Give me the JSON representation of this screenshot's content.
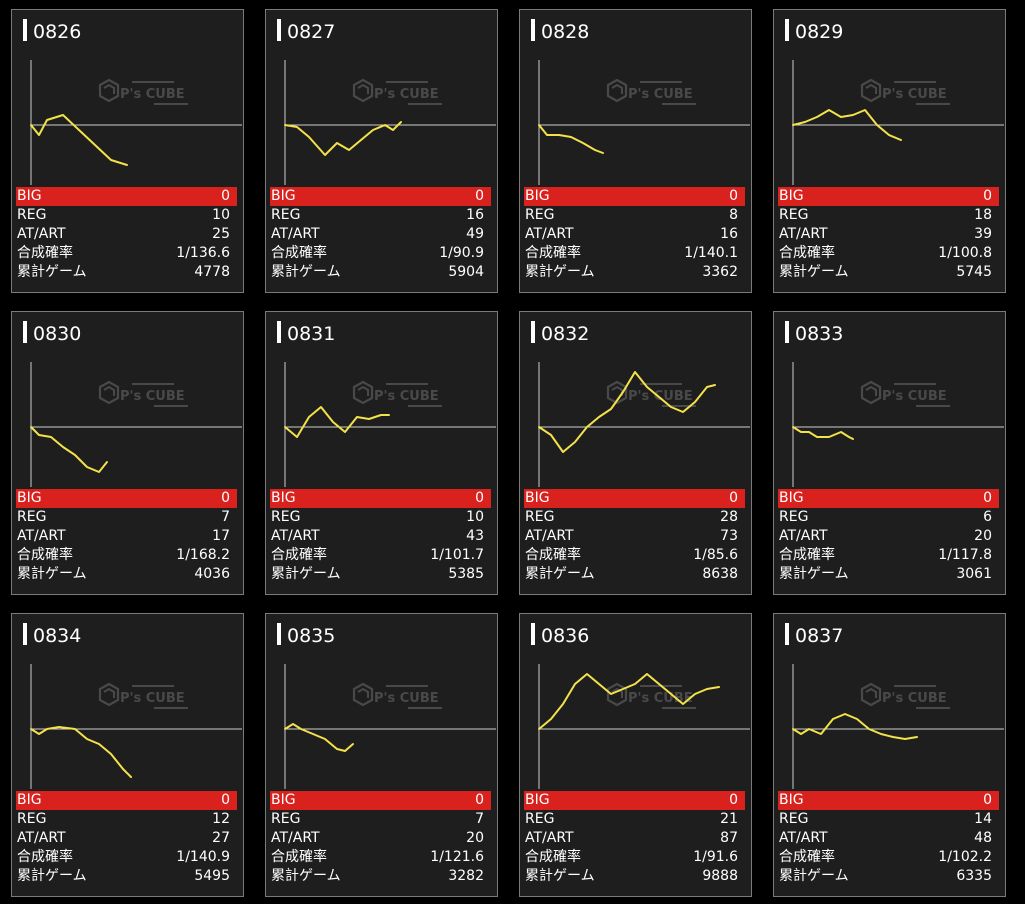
{
  "row_labels": {
    "big": "BIG",
    "reg": "REG",
    "at": "AT/ART",
    "prob": "合成確率",
    "games": "累計ゲーム"
  },
  "watermark": {
    "brand": "P's CUBE"
  },
  "colors": {
    "line": "#f3e24a",
    "big_row": "#d9211e",
    "card_bg": "#1e1e1e",
    "card_border": "#7a7a7a",
    "axis": "#cfcfcf"
  },
  "machines": [
    {
      "id": "0826",
      "big": "0",
      "reg": "10",
      "at": "25",
      "prob": "1/136.6",
      "games": "4778",
      "line": [
        [
          0,
          0
        ],
        [
          8,
          -10
        ],
        [
          16,
          5
        ],
        [
          32,
          10
        ],
        [
          48,
          -5
        ],
        [
          64,
          -20
        ],
        [
          80,
          -35
        ],
        [
          96,
          -40
        ]
      ]
    },
    {
      "id": "0827",
      "big": "0",
      "reg": "16",
      "at": "49",
      "prob": "1/90.9",
      "games": "5904",
      "line": [
        [
          0,
          0
        ],
        [
          12,
          -2
        ],
        [
          24,
          -12
        ],
        [
          40,
          -30
        ],
        [
          52,
          -18
        ],
        [
          64,
          -25
        ],
        [
          76,
          -15
        ],
        [
          88,
          -5
        ],
        [
          100,
          0
        ],
        [
          108,
          -5
        ],
        [
          116,
          3
        ]
      ]
    },
    {
      "id": "0828",
      "big": "0",
      "reg": "8",
      "at": "16",
      "prob": "1/140.1",
      "games": "3362",
      "line": [
        [
          0,
          0
        ],
        [
          8,
          -10
        ],
        [
          20,
          -10
        ],
        [
          32,
          -12
        ],
        [
          44,
          -18
        ],
        [
          56,
          -25
        ],
        [
          64,
          -28
        ]
      ]
    },
    {
      "id": "0829",
      "big": "0",
      "reg": "18",
      "at": "39",
      "prob": "1/100.8",
      "games": "5745",
      "line": [
        [
          0,
          0
        ],
        [
          12,
          3
        ],
        [
          24,
          8
        ],
        [
          36,
          15
        ],
        [
          48,
          8
        ],
        [
          60,
          10
        ],
        [
          72,
          15
        ],
        [
          84,
          0
        ],
        [
          96,
          -10
        ],
        [
          108,
          -15
        ]
      ]
    },
    {
      "id": "0830",
      "big": "0",
      "reg": "7",
      "at": "17",
      "prob": "1/168.2",
      "games": "4036",
      "line": [
        [
          0,
          0
        ],
        [
          8,
          -8
        ],
        [
          20,
          -10
        ],
        [
          32,
          -20
        ],
        [
          44,
          -28
        ],
        [
          56,
          -40
        ],
        [
          68,
          -45
        ],
        [
          76,
          -35
        ]
      ]
    },
    {
      "id": "0831",
      "big": "0",
      "reg": "10",
      "at": "43",
      "prob": "1/101.7",
      "games": "5385",
      "line": [
        [
          0,
          0
        ],
        [
          12,
          -10
        ],
        [
          24,
          10
        ],
        [
          36,
          20
        ],
        [
          48,
          5
        ],
        [
          60,
          -5
        ],
        [
          72,
          10
        ],
        [
          84,
          8
        ],
        [
          96,
          12
        ],
        [
          104,
          12
        ]
      ]
    },
    {
      "id": "0832",
      "big": "0",
      "reg": "28",
      "at": "73",
      "prob": "1/85.6",
      "games": "8638",
      "line": [
        [
          0,
          0
        ],
        [
          12,
          -8
        ],
        [
          24,
          -25
        ],
        [
          36,
          -15
        ],
        [
          48,
          0
        ],
        [
          60,
          10
        ],
        [
          72,
          18
        ],
        [
          84,
          35
        ],
        [
          96,
          55
        ],
        [
          108,
          40
        ],
        [
          120,
          30
        ],
        [
          132,
          20
        ],
        [
          144,
          15
        ],
        [
          156,
          25
        ],
        [
          168,
          40
        ],
        [
          176,
          42
        ]
      ]
    },
    {
      "id": "0833",
      "big": "0",
      "reg": "6",
      "at": "20",
      "prob": "1/117.8",
      "games": "3061",
      "line": [
        [
          0,
          0
        ],
        [
          8,
          -5
        ],
        [
          16,
          -5
        ],
        [
          24,
          -10
        ],
        [
          36,
          -10
        ],
        [
          48,
          -5
        ],
        [
          56,
          -10
        ],
        [
          60,
          -12
        ]
      ]
    },
    {
      "id": "0834",
      "big": "0",
      "reg": "12",
      "at": "27",
      "prob": "1/140.9",
      "games": "5495",
      "line": [
        [
          0,
          0
        ],
        [
          8,
          -5
        ],
        [
          16,
          0
        ],
        [
          28,
          2
        ],
        [
          44,
          0
        ],
        [
          56,
          -10
        ],
        [
          68,
          -15
        ],
        [
          80,
          -25
        ],
        [
          92,
          -40
        ],
        [
          100,
          -48
        ]
      ]
    },
    {
      "id": "0835",
      "big": "0",
      "reg": "7",
      "at": "20",
      "prob": "1/121.6",
      "games": "3282",
      "line": [
        [
          0,
          0
        ],
        [
          8,
          5
        ],
        [
          16,
          0
        ],
        [
          28,
          -5
        ],
        [
          40,
          -10
        ],
        [
          52,
          -20
        ],
        [
          60,
          -22
        ],
        [
          68,
          -15
        ]
      ]
    },
    {
      "id": "0836",
      "big": "0",
      "reg": "21",
      "at": "87",
      "prob": "1/91.6",
      "games": "9888",
      "line": [
        [
          0,
          0
        ],
        [
          12,
          10
        ],
        [
          24,
          25
        ],
        [
          36,
          45
        ],
        [
          48,
          55
        ],
        [
          60,
          45
        ],
        [
          72,
          35
        ],
        [
          84,
          40
        ],
        [
          96,
          45
        ],
        [
          108,
          55
        ],
        [
          120,
          45
        ],
        [
          132,
          35
        ],
        [
          144,
          25
        ],
        [
          156,
          35
        ],
        [
          168,
          40
        ],
        [
          180,
          42
        ]
      ]
    },
    {
      "id": "0837",
      "big": "0",
      "reg": "14",
      "at": "48",
      "prob": "1/102.2",
      "games": "6335",
      "line": [
        [
          0,
          0
        ],
        [
          8,
          -5
        ],
        [
          16,
          0
        ],
        [
          28,
          -5
        ],
        [
          40,
          10
        ],
        [
          52,
          15
        ],
        [
          64,
          10
        ],
        [
          76,
          0
        ],
        [
          88,
          -5
        ],
        [
          100,
          -8
        ],
        [
          112,
          -10
        ],
        [
          124,
          -8
        ]
      ]
    }
  ]
}
